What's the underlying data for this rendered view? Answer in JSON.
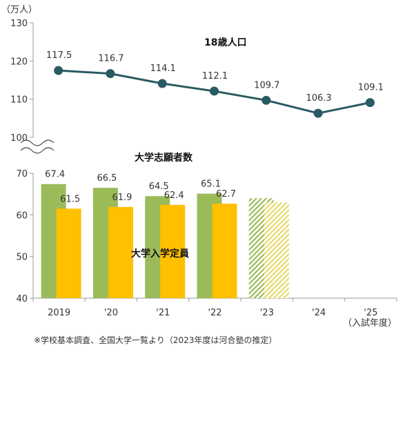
{
  "chart_data": {
    "type": "bar",
    "unit_label": "（万人）",
    "unit_note": "（入試年度）",
    "categories": [
      "2019",
      "'20",
      "'21",
      "'22",
      "'23",
      "'24",
      "'25"
    ],
    "line_series": {
      "name": "18歳人口",
      "values": [
        117.5,
        116.7,
        114.1,
        112.1,
        109.7,
        106.3,
        109.1
      ],
      "color": "#2a5a62"
    },
    "bar_series": [
      {
        "name": "大学志願者数",
        "values": [
          67.4,
          66.5,
          64.5,
          65.1,
          64.0,
          null,
          null
        ],
        "labels": [
          "67.4",
          "66.5",
          "64.5",
          "65.1",
          null,
          null,
          null
        ],
        "estimated": [
          false,
          false,
          false,
          false,
          true,
          false,
          false
        ],
        "color": "#9bbb59"
      },
      {
        "name": "大学入学定員",
        "values": [
          61.5,
          61.9,
          62.4,
          62.7,
          63.0,
          null,
          null
        ],
        "labels": [
          "61.5",
          "61.9",
          "62.4",
          "62.7",
          null,
          null,
          null
        ],
        "estimated": [
          false,
          false,
          false,
          false,
          true,
          false,
          false
        ],
        "color": "#ffc000"
      }
    ],
    "upper_axis": {
      "ylim": [
        100,
        130
      ],
      "ticks": [
        "100",
        "110",
        "120",
        "130"
      ]
    },
    "lower_axis": {
      "ylim": [
        40,
        70
      ],
      "ticks": [
        "40",
        "50",
        "60",
        "70"
      ]
    },
    "axis_break": true,
    "grid": false
  },
  "footnote": "※学校基本調査、全国大学一覧より（2023年度は河合塾の推定）"
}
